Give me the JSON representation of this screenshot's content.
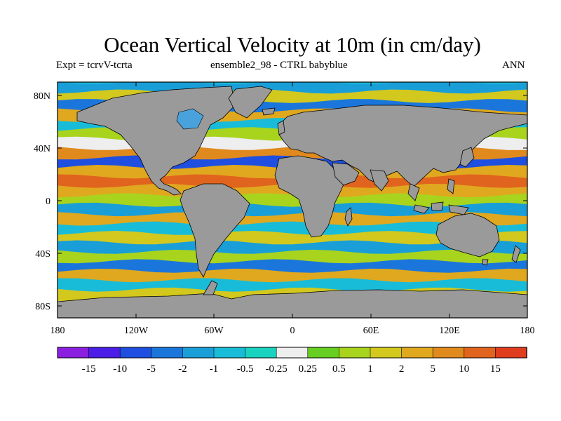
{
  "title": "Ocean Vertical Velocity at 10m (in cm/day)",
  "experiment": "Expt = tcrvV-tcrta",
  "comparison": "ensemble2_98 - CTRL babyblue",
  "season": "ANN",
  "y_ticks": [
    "80N",
    "40N",
    "0",
    "40S",
    "80S"
  ],
  "x_ticks": [
    "180",
    "120W",
    "60W",
    "0",
    "60E",
    "120E",
    "180"
  ],
  "colorbar": {
    "labels": [
      "-15",
      "-10",
      "-5",
      "-2",
      "-1",
      "-0.5",
      "-0.25",
      "0.25",
      "0.5",
      "1",
      "2",
      "5",
      "10",
      "15"
    ],
    "colors": [
      "#8a1fe0",
      "#4a1ee6",
      "#1e4fe0",
      "#1b76dc",
      "#199ed8",
      "#19bcd8",
      "#19d2c0",
      "#eeeeee",
      "#66cf22",
      "#a8d41e",
      "#d2c81e",
      "#e0a81e",
      "#e08a1e",
      "#e0641e",
      "#e03c1e"
    ]
  },
  "colors": {
    "land": "#9a9a9a",
    "background": "#ffffff"
  }
}
